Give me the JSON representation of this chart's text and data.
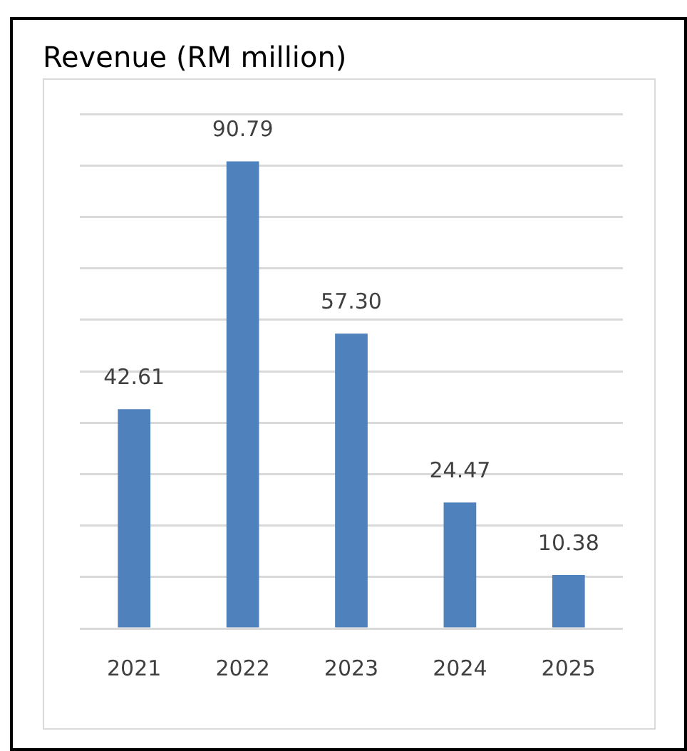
{
  "chart_data": {
    "type": "bar",
    "title": "Revenue (RM million)",
    "categories": [
      "2021",
      "2022",
      "2023",
      "2024",
      "2025"
    ],
    "values": [
      42.61,
      90.79,
      57.3,
      24.47,
      10.38
    ],
    "color": "#4f81bd",
    "value_labels": [
      "42.61",
      "90.79",
      "57.30",
      "24.47",
      "10.38"
    ],
    "grid": "y",
    "tick_labels": "x"
  }
}
